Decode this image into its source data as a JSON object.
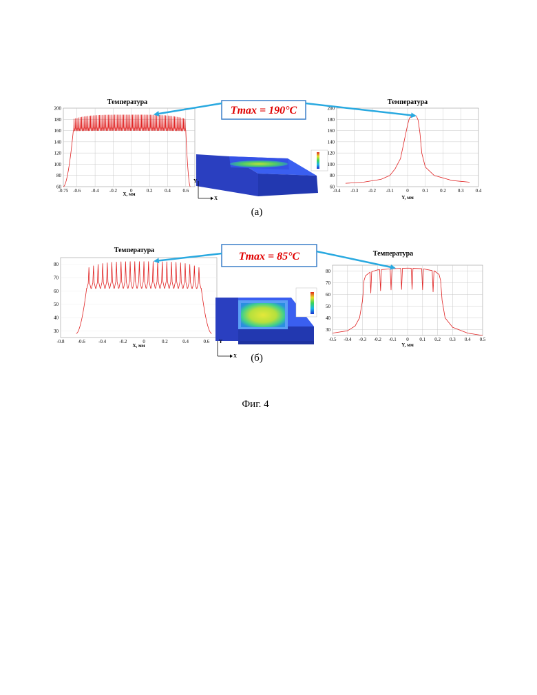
{
  "chart_data": [
    {
      "id": "a_x",
      "type": "line",
      "title": "Температура",
      "xlabel": "X, мм",
      "ylabel": "",
      "xlim": [
        -0.75,
        0.7
      ],
      "ylim": [
        60,
        200
      ],
      "xticks": [
        "-0.75",
        "-0.6",
        "-0.4",
        "-0.2",
        "0",
        "0.2",
        "0.4",
        "0.6"
      ],
      "xtick_values": [
        -0.75,
        -0.6,
        -0.4,
        -0.2,
        0,
        0.2,
        0.4,
        0.6
      ],
      "yticks": [
        "60",
        "80",
        "100",
        "120",
        "140",
        "160",
        "180",
        "200"
      ],
      "ytick_values": [
        60,
        80,
        100,
        120,
        140,
        160,
        180,
        200
      ],
      "grid": true,
      "color": "#e02020",
      "profile": {
        "edge_start": -0.75,
        "edge_end": 0.65,
        "flat_start": -0.64,
        "flat_end": 0.6,
        "base": 60,
        "plateau": 160,
        "peak": 188,
        "peaks": 75
      }
    },
    {
      "id": "a_y",
      "type": "line",
      "title": "Температура",
      "xlabel": "Y, мм",
      "ylabel": "",
      "xlim": [
        -0.4,
        0.4
      ],
      "ylim": [
        60,
        200
      ],
      "xticks": [
        "-0.4",
        "-0.3",
        "-0.2",
        "-0.1",
        "0",
        "0.1",
        "0.2",
        "0.3",
        "0.4"
      ],
      "xtick_values": [
        -0.4,
        -0.3,
        -0.2,
        -0.1,
        0,
        0.1,
        0.2,
        0.3,
        0.4
      ],
      "yticks": [
        "60",
        "80",
        "100",
        "120",
        "140",
        "160",
        "180",
        "200"
      ],
      "ytick_values": [
        60,
        80,
        100,
        120,
        140,
        160,
        180,
        200
      ],
      "grid": true,
      "color": "#e02020",
      "points": [
        [
          -0.35,
          66
        ],
        [
          -0.25,
          68
        ],
        [
          -0.15,
          73
        ],
        [
          -0.1,
          80
        ],
        [
          -0.07,
          92
        ],
        [
          -0.04,
          110
        ],
        [
          -0.02,
          140
        ],
        [
          0,
          170
        ],
        [
          0.01,
          182
        ],
        [
          0.03,
          188
        ],
        [
          0.05,
          186
        ],
        [
          0.06,
          178
        ],
        [
          0.07,
          155
        ],
        [
          0.08,
          120
        ],
        [
          0.1,
          95
        ],
        [
          0.15,
          80
        ],
        [
          0.25,
          71
        ],
        [
          0.35,
          68
        ]
      ]
    },
    {
      "id": "b_x",
      "type": "line",
      "title": "Температура",
      "xlabel": "X, мм",
      "ylabel": "",
      "xlim": [
        -0.8,
        0.7
      ],
      "ylim": [
        25,
        85
      ],
      "xticks": [
        "-0.8",
        "-0.6",
        "-0.4",
        "-0.2",
        "0",
        "0.2",
        "0.4",
        "0.6"
      ],
      "xtick_values": [
        -0.8,
        -0.6,
        -0.4,
        -0.2,
        0,
        0.2,
        0.4,
        0.6
      ],
      "yticks": [
        "30",
        "40",
        "50",
        "60",
        "70",
        "80"
      ],
      "ytick_values": [
        30,
        40,
        50,
        60,
        70,
        80
      ],
      "grid": false,
      "color": "#e02020",
      "profile": {
        "edge_start": -0.65,
        "edge_end": 0.65,
        "flat_start": -0.55,
        "flat_end": 0.55,
        "base": 28,
        "plateau": 62,
        "peak": 82,
        "peaks": 25
      }
    },
    {
      "id": "b_y",
      "type": "line",
      "title": "Температура",
      "xlabel": "Y, мм",
      "ylabel": "",
      "xlim": [
        -0.5,
        0.5
      ],
      "ylim": [
        25,
        85
      ],
      "xticks": [
        "-0.5",
        "-0.4",
        "-0.3",
        "-0.2",
        "-0.1",
        "0",
        "0.1",
        "0.2",
        "0.3",
        "0.4",
        "0.5"
      ],
      "xtick_values": [
        -0.5,
        -0.4,
        -0.3,
        -0.2,
        -0.1,
        0,
        0.1,
        0.2,
        0.3,
        0.4,
        0.5
      ],
      "yticks": [
        "30",
        "40",
        "50",
        "60",
        "70",
        "80"
      ],
      "ytick_values": [
        30,
        40,
        50,
        60,
        70,
        80
      ],
      "grid": true,
      "color": "#e02020",
      "dips": [
        -0.245,
        -0.18,
        -0.11,
        -0.04,
        0.03,
        0.1,
        0.17
      ],
      "points": [
        [
          -0.5,
          27
        ],
        [
          -0.4,
          29
        ],
        [
          -0.35,
          33
        ],
        [
          -0.32,
          40
        ],
        [
          -0.3,
          55
        ],
        [
          -0.29,
          72
        ],
        [
          -0.28,
          76
        ],
        [
          -0.25,
          79
        ],
        [
          -0.2,
          81
        ],
        [
          -0.1,
          82
        ],
        [
          0,
          82.5
        ],
        [
          0.1,
          82
        ],
        [
          0.18,
          80
        ],
        [
          0.21,
          77
        ],
        [
          0.22,
          72
        ],
        [
          0.23,
          55
        ],
        [
          0.25,
          40
        ],
        [
          0.3,
          32
        ],
        [
          0.4,
          27
        ],
        [
          0.5,
          25
        ]
      ]
    }
  ],
  "callouts": {
    "a": {
      "text": "Tmax = 190°C"
    },
    "b": {
      "text": "Tmax = 85°C"
    }
  },
  "panels": {
    "a_label": "(а)",
    "b_label": "(б)"
  },
  "axes_icon": {
    "y": "Y",
    "x": "X"
  },
  "caption": "Фиг. 4",
  "colors": {
    "curve": "#e02020",
    "grid": "#c8c8c8",
    "arrow": "#29a9e0",
    "callout_border": "#3a7fc8",
    "callout_text": "#e00000",
    "block": "#2a3fc0"
  }
}
